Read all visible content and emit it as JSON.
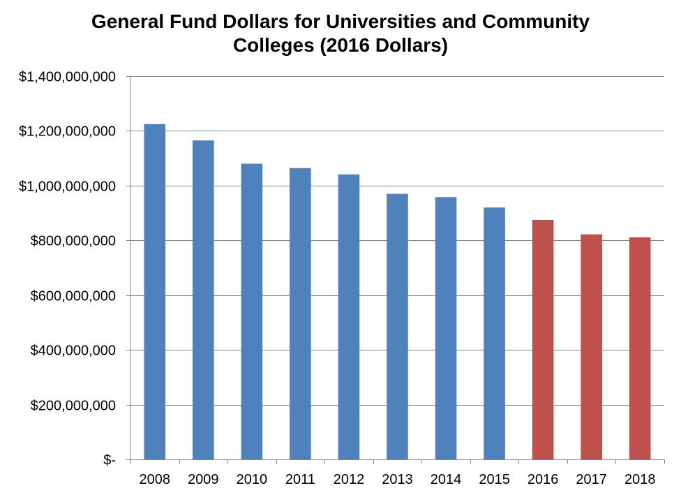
{
  "chart_data": {
    "type": "bar",
    "title_lines": [
      "General Fund Dollars for Universities and Community",
      "Colleges (2016 Dollars)"
    ],
    "categories": [
      "2008",
      "2009",
      "2010",
      "2011",
      "2012",
      "2013",
      "2014",
      "2015",
      "2016",
      "2017",
      "2018"
    ],
    "values": [
      1225000000,
      1165000000,
      1080000000,
      1064000000,
      1041000000,
      970000000,
      958000000,
      920000000,
      875000000,
      822000000,
      811000000
    ],
    "bar_colors": [
      "#4f81bd",
      "#4f81bd",
      "#4f81bd",
      "#4f81bd",
      "#4f81bd",
      "#4f81bd",
      "#4f81bd",
      "#4f81bd",
      "#c0504d",
      "#c0504d",
      "#c0504d"
    ],
    "ylim": [
      0,
      1400000000
    ],
    "y_ticks": [
      0,
      200000000,
      400000000,
      600000000,
      800000000,
      1000000000,
      1200000000,
      1400000000
    ],
    "y_tick_labels": [
      "$-",
      "$200,000,000",
      "$400,000,000",
      "$600,000,000",
      "$800,000,000",
      "$1,000,000,000",
      "$1,200,000,000",
      "$1,400,000,000"
    ],
    "xlabel": "",
    "ylabel": "",
    "grid": true,
    "legend": "none",
    "colors": {
      "historical": "#4f81bd",
      "projected": "#c0504d",
      "grid": "#868686"
    }
  }
}
